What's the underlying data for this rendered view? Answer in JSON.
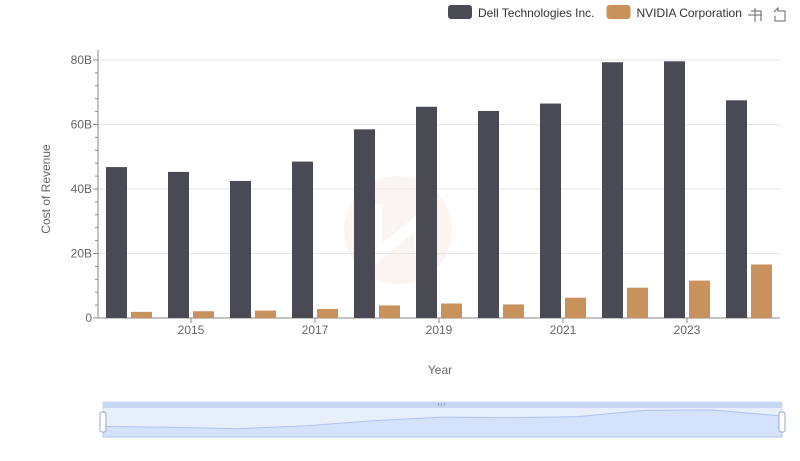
{
  "chart_data": {
    "type": "bar",
    "categories": [
      2014,
      2015,
      2016,
      2017,
      2018,
      2019,
      2020,
      2021,
      2022,
      2023,
      2024
    ],
    "x_tick_labels": [
      "2015",
      "2017",
      "2019",
      "2021",
      "2023"
    ],
    "y_tick_labels": [
      "0",
      "20B",
      "40B",
      "60B",
      "80B"
    ],
    "y_ticks": [
      0,
      20,
      40,
      60,
      80
    ],
    "ylim": [
      0,
      85
    ],
    "xlabel": "Year",
    "ylabel": "Cost of Revenue",
    "unit": "billions",
    "legend_position": "top-right",
    "grid": true,
    "series": [
      {
        "name": "Dell Technologies Inc.",
        "color": "#4a4a55",
        "values": [
          46.8,
          45.3,
          42.5,
          48.5,
          58.5,
          65.5,
          64.2,
          66.5,
          79.3,
          79.6,
          67.5
        ]
      },
      {
        "name": "NVIDIA Corporation",
        "color": "#c9915b",
        "values": [
          1.9,
          2.1,
          2.3,
          2.8,
          3.9,
          4.5,
          4.2,
          6.3,
          9.4,
          11.6,
          16.6
        ]
      }
    ]
  },
  "toolbox": {
    "zoom_icon": "zoom-select-icon",
    "restore_icon": "restore-icon"
  },
  "zoom_slider": {
    "start_percent": 0,
    "end_percent": 100,
    "handle_icon": "grip-icon"
  }
}
